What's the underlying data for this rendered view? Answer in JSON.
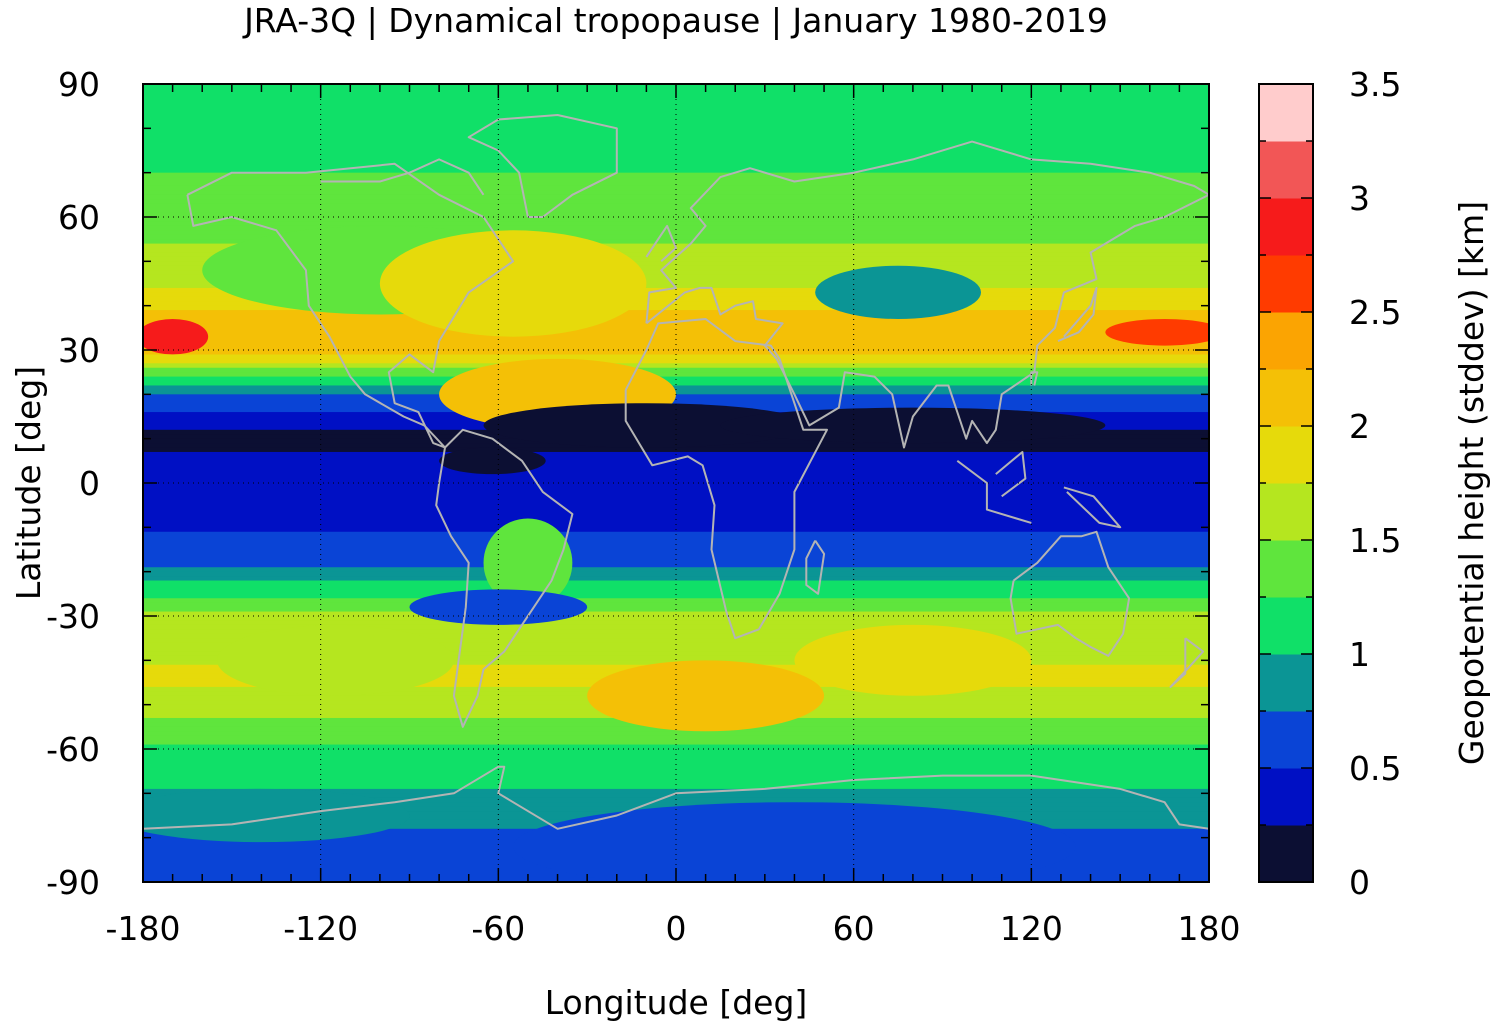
{
  "chart_data": {
    "type": "heatmap",
    "title": "JRA-3Q | Dynamical tropopause | January 1980-2019",
    "xlabel": "Longitude [deg]",
    "ylabel": "Latitude [deg]",
    "colorbar_label": "Geopotential height (stddev) [km]",
    "xlim": [
      -180,
      180
    ],
    "ylim": [
      -90,
      90
    ],
    "x_ticks": [
      "-180",
      "-120",
      "-60",
      "0",
      "60",
      "120",
      "180"
    ],
    "y_ticks": [
      "90",
      "60",
      "30",
      "0",
      "-30",
      "-60",
      "-90"
    ],
    "grid": true,
    "colorbar": {
      "min": 0,
      "max": 3.5,
      "step": 0.25,
      "tick_labels": [
        "3.5",
        "3",
        "2.5",
        "2",
        "1.5",
        "1",
        "0.5",
        "0"
      ],
      "colors": [
        "#0c0f33",
        "#0010c4",
        "#0a44d6",
        "#0b9595",
        "#10e068",
        "#5fe53d",
        "#b5e61f",
        "#e6da0b",
        "#f4c006",
        "#fba402",
        "#ff3b00",
        "#f61b1b",
        "#f25656",
        "#ffcccc"
      ]
    },
    "latitude_profile_stddev_km": [
      {
        "lat": 90,
        "value": 1.15
      },
      {
        "lat": 75,
        "value": 1.2
      },
      {
        "lat": 60,
        "value": 1.35
      },
      {
        "lat": 45,
        "value": 1.7
      },
      {
        "lat": 35,
        "value": 2.2
      },
      {
        "lat": 30,
        "value": 2.1
      },
      {
        "lat": 25,
        "value": 1.4
      },
      {
        "lat": 20,
        "value": 0.7
      },
      {
        "lat": 10,
        "value": 0.15
      },
      {
        "lat": 0,
        "value": 0.45
      },
      {
        "lat": -10,
        "value": 0.45
      },
      {
        "lat": -20,
        "value": 0.8
      },
      {
        "lat": -30,
        "value": 1.6
      },
      {
        "lat": -45,
        "value": 1.8
      },
      {
        "lat": -60,
        "value": 1.2
      },
      {
        "lat": -75,
        "value": 0.85
      },
      {
        "lat": -85,
        "value": 0.55
      }
    ],
    "coastline_color": "#b4b4b4"
  }
}
